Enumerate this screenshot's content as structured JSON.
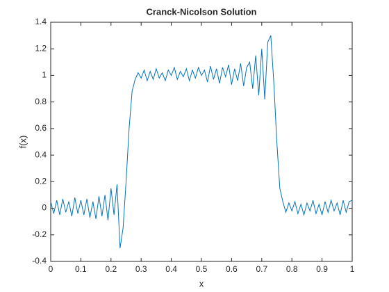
{
  "chart_data": {
    "type": "line",
    "title": "Cranck-Nicolson Solution",
    "x_label": "x",
    "y_label": "f(x)",
    "series": [
      {
        "name": "f(x)",
        "color": "#0072bd",
        "x": [
          0,
          0.01,
          0.02,
          0.03,
          0.04,
          0.05,
          0.06,
          0.07,
          0.08,
          0.09,
          0.1,
          0.11,
          0.12,
          0.13,
          0.14,
          0.15,
          0.16,
          0.17,
          0.18,
          0.19,
          0.2,
          0.21,
          0.22,
          0.23,
          0.24,
          0.25,
          0.26,
          0.27,
          0.28,
          0.29,
          0.3,
          0.31,
          0.32,
          0.33,
          0.34,
          0.35,
          0.36,
          0.37,
          0.38,
          0.39,
          0.4,
          0.41,
          0.42,
          0.43,
          0.44,
          0.45,
          0.46,
          0.47,
          0.48,
          0.49,
          0.5,
          0.51,
          0.52,
          0.53,
          0.54,
          0.55,
          0.56,
          0.57,
          0.58,
          0.59,
          0.6,
          0.61,
          0.62,
          0.63,
          0.64,
          0.65,
          0.66,
          0.67,
          0.68,
          0.69,
          0.7,
          0.71,
          0.72,
          0.73,
          0.74,
          0.75,
          0.76,
          0.77,
          0.78,
          0.79,
          0.8,
          0.81,
          0.82,
          0.83,
          0.84,
          0.85,
          0.86,
          0.87,
          0.88,
          0.89,
          0.9,
          0.91,
          0.92,
          0.93,
          0.94,
          0.95,
          0.96,
          0.97,
          0.98,
          0.99,
          1
        ],
        "values": [
          0.05,
          -0.04,
          0.06,
          -0.05,
          0.07,
          -0.03,
          0.05,
          -0.06,
          0.08,
          -0.04,
          0.06,
          -0.05,
          0.07,
          -0.07,
          0.05,
          -0.08,
          0.09,
          -0.06,
          0.1,
          -0.09,
          0.15,
          -0.05,
          0.18,
          -0.3,
          -0.15,
          0.2,
          0.6,
          0.88,
          0.97,
          1.02,
          0.98,
          1.04,
          0.96,
          1.03,
          0.97,
          1.05,
          0.98,
          1.02,
          0.96,
          1.04,
          1.0,
          1.06,
          0.97,
          1.03,
          0.99,
          1.05,
          0.96,
          1.04,
          0.98,
          1.06,
          1.0,
          1.04,
          0.95,
          1.07,
          0.97,
          1.05,
          0.94,
          1.06,
          0.99,
          1.08,
          0.93,
          1.05,
          0.96,
          1.09,
          0.92,
          1.06,
          1.1,
          0.9,
          1.15,
          0.85,
          1.2,
          0.82,
          1.25,
          1.3,
          0.95,
          0.5,
          0.15,
          0.05,
          -0.03,
          0.04,
          -0.02,
          0.05,
          -0.04,
          0.03,
          -0.05,
          0.04,
          -0.02,
          0.06,
          -0.04,
          0.03,
          -0.05,
          0.05,
          -0.03,
          0.06,
          -0.02,
          0.04,
          -0.05,
          0.06,
          -0.03,
          0.05,
          0.06
        ]
      }
    ],
    "xlim": [
      0,
      1
    ],
    "ylim": [
      -0.4,
      1.4
    ],
    "xticks": [
      0,
      0.1,
      0.2,
      0.3,
      0.4,
      0.5,
      0.6,
      0.7,
      0.8,
      0.9,
      1
    ],
    "yticks": [
      -0.4,
      -0.2,
      0,
      0.2,
      0.4,
      0.6,
      0.8,
      1,
      1.2,
      1.4
    ],
    "grid": false
  }
}
